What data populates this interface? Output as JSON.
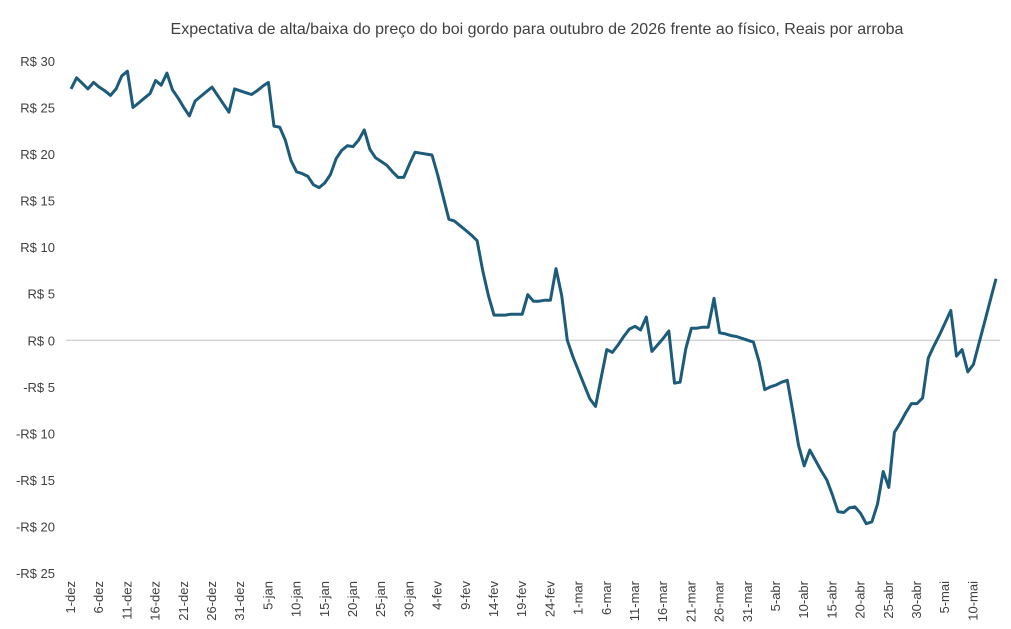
{
  "chart_data": {
    "type": "line",
    "title": "Expectativa de alta/baixa do preço do boi gordo para outubro de 2026 frente ao físico, Reais por arroba",
    "categories": [
      "1-dez",
      null,
      null,
      null,
      null,
      "6-dez",
      null,
      null,
      null,
      null,
      "11-dez",
      null,
      null,
      null,
      null,
      "16-dez",
      null,
      null,
      null,
      null,
      "21-dez",
      null,
      null,
      null,
      null,
      "26-dez",
      null,
      null,
      null,
      null,
      "31-dez",
      null,
      null,
      null,
      null,
      "5-jan",
      null,
      null,
      null,
      null,
      "10-jan",
      null,
      null,
      null,
      null,
      "15-jan",
      null,
      null,
      null,
      null,
      "20-jan",
      null,
      null,
      null,
      null,
      "25-jan",
      null,
      null,
      null,
      null,
      "30-jan",
      null,
      null,
      null,
      null,
      "4-fev",
      null,
      null,
      null,
      null,
      "9-fev",
      null,
      null,
      null,
      null,
      "14-fev",
      null,
      null,
      null,
      null,
      "19-fev",
      null,
      null,
      null,
      null,
      "24-fev",
      null,
      null,
      null,
      null,
      "1-mar",
      null,
      null,
      null,
      null,
      "6-mar",
      null,
      null,
      null,
      null,
      "11-mar",
      null,
      null,
      null,
      null,
      "16-mar",
      null,
      null,
      null,
      null,
      "21-mar",
      null,
      null,
      null,
      null,
      "26-mar",
      null,
      null,
      null,
      null,
      "31-mar",
      null,
      null,
      null,
      null,
      "5-abr",
      null,
      null,
      null,
      null,
      "10-abr",
      null,
      null,
      null,
      null,
      "15-abr",
      null,
      null,
      null,
      null,
      "20-abr",
      null,
      null,
      null,
      null,
      "25-abr",
      null,
      null,
      null,
      null,
      "30-abr",
      null,
      null,
      null,
      null,
      "5-mai",
      null,
      null,
      null,
      null,
      "10-mai",
      null,
      null,
      null,
      null
    ],
    "series": [
      {
        "name": "Expectativa",
        "color": "#1d5b7b",
        "values": [
          27.0,
          28.2,
          27.6,
          27.0,
          27.7,
          27.2,
          26.8,
          26.3,
          27.0,
          28.4,
          28.9,
          25.0,
          25.5,
          26.0,
          26.5,
          27.9,
          27.4,
          28.7,
          26.9,
          26.0,
          25.0,
          24.1,
          25.7,
          26.2,
          26.7,
          27.2,
          26.3,
          25.4,
          24.5,
          27.0,
          26.8,
          26.6,
          26.4,
          26.8,
          27.3,
          27.7,
          23.0,
          22.9,
          21.5,
          19.3,
          18.1,
          17.9,
          17.6,
          16.7,
          16.4,
          16.9,
          17.8,
          19.5,
          20.4,
          20.9,
          20.8,
          21.5,
          22.6,
          20.5,
          19.6,
          19.2,
          18.8,
          18.1,
          17.5,
          17.5,
          18.9,
          20.2,
          20.1,
          20.0,
          19.9,
          17.8,
          15.4,
          13.0,
          12.8,
          12.3,
          11.8,
          11.3,
          10.7,
          7.5,
          4.8,
          2.7,
          2.7,
          2.7,
          2.8,
          2.8,
          2.8,
          4.9,
          4.2,
          4.2,
          4.3,
          4.3,
          7.7,
          4.8,
          0,
          -1.8,
          -3.3,
          -4.8,
          -6.3,
          -7.1,
          -4.0,
          -1.0,
          -1.3,
          -0.5,
          0.4,
          1.2,
          1.5,
          1.1,
          2.5,
          -1.2,
          -0.5,
          0.2,
          1.0,
          -4.6,
          -4.5,
          -0.9,
          1.3,
          1.3,
          1.4,
          1.4,
          4.5,
          0.8,
          0.7,
          0.5,
          0.4,
          0.2,
          0.0,
          -0.2,
          -2.3,
          -5.3,
          -5.0,
          -4.8,
          -4.5,
          -4.3,
          -7.7,
          -11.3,
          -13.5,
          -11.8,
          -12.9,
          -14.0,
          -15.0,
          -16.6,
          -18.4,
          -18.5,
          -18.0,
          -17.9,
          -18.6,
          -19.7,
          -19.5,
          -17.6,
          -14.1,
          -15.8,
          -9.9,
          -8.9,
          -7.8,
          -6.8,
          -6.8,
          -6.2,
          -1.9,
          -0.6,
          0.6,
          1.9,
          3.2,
          -1.7,
          -1.0,
          -3.4,
          -2.6,
          -0.3,
          2.0,
          4.3,
          6.6
        ]
      }
    ],
    "ylim": [
      -25,
      30
    ],
    "yticks": [
      {
        "value": 30,
        "label": "R$ 30"
      },
      {
        "value": 25,
        "label": "R$ 25"
      },
      {
        "value": 20,
        "label": "R$ 20"
      },
      {
        "value": 15,
        "label": "R$ 15"
      },
      {
        "value": 10,
        "label": "R$ 10"
      },
      {
        "value": 5,
        "label": "R$ 5"
      },
      {
        "value": 0,
        "label": "R$ 0"
      },
      {
        "value": -5,
        "label": "-R$ 5"
      },
      {
        "value": -10,
        "label": "-R$ 10"
      },
      {
        "value": -15,
        "label": "-R$ 15"
      },
      {
        "value": -20,
        "label": "-R$ 20"
      },
      {
        "value": -25,
        "label": "-R$ 25"
      }
    ],
    "grid": false
  }
}
